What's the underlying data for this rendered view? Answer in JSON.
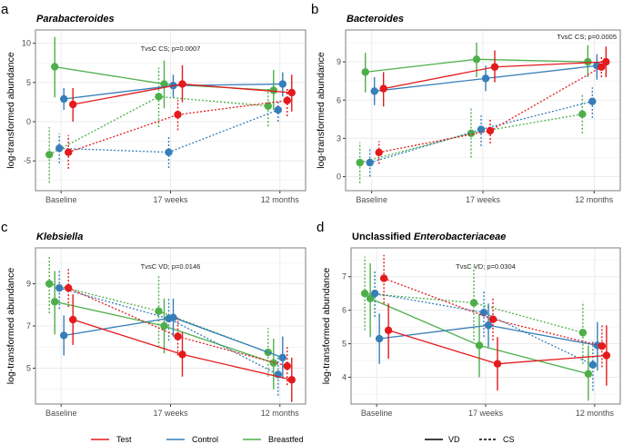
{
  "colors": {
    "Test": "#e41a1c",
    "Control": "#377eb8",
    "Breastfed": "#4daf4a"
  },
  "legend": {
    "groups": [
      "Test",
      "Control",
      "Breastfed"
    ],
    "delivery": [
      {
        "label": "VD",
        "linetype": "solid"
      },
      {
        "label": "CS",
        "linetype": "dashed"
      }
    ]
  },
  "chart_data": [
    {
      "type": "line",
      "panel_letter": "a",
      "title": "Parabacteroides",
      "title_italic": true,
      "ylabel": "log-transformed abundance",
      "categories": [
        "Baseline",
        "17 weeks",
        "12 months"
      ],
      "yticks": [
        -5,
        0,
        5,
        10
      ],
      "ylim": [
        -8.8,
        11.7
      ],
      "grid": true,
      "annotation": {
        "text": "TvsC CS; p=0.0007",
        "placement": "top-center"
      },
      "series": [
        {
          "group": "Breastfed",
          "delivery": "CS",
          "values": [
            -4.2,
            3.2,
            2.0
          ],
          "lower": [
            -7.8,
            -0.7,
            -0.6
          ],
          "upper": [
            -0.7,
            6.9,
            4.2
          ]
        },
        {
          "group": "Breastfed",
          "delivery": "VD",
          "values": [
            7.0,
            4.8,
            4.0
          ],
          "lower": [
            3.1,
            1.7,
            1.5
          ],
          "upper": [
            10.8,
            7.8,
            6.6
          ]
        },
        {
          "group": "Control",
          "delivery": "CS",
          "values": [
            -3.4,
            -3.9,
            1.5
          ],
          "lower": [
            -5.3,
            -5.9,
            0.0
          ],
          "upper": [
            -1.5,
            -1.9,
            2.8
          ]
        },
        {
          "group": "Control",
          "delivery": "VD",
          "values": [
            2.9,
            4.6,
            4.8
          ],
          "lower": [
            1.5,
            3.1,
            3.2
          ],
          "upper": [
            4.3,
            6.0,
            6.3
          ]
        },
        {
          "group": "Test",
          "delivery": "CS",
          "values": [
            -3.9,
            0.9,
            2.7
          ],
          "lower": [
            -6.0,
            -1.1,
            0.7
          ],
          "upper": [
            -1.7,
            2.8,
            4.4
          ]
        },
        {
          "group": "Test",
          "delivery": "VD",
          "values": [
            2.2,
            4.8,
            3.7
          ],
          "lower": [
            0.0,
            2.5,
            1.3
          ],
          "upper": [
            4.3,
            7.2,
            6.0
          ]
        }
      ]
    },
    {
      "type": "line",
      "panel_letter": "b",
      "title": "Bacteroides",
      "title_italic": true,
      "ylabel": "log-transformed abundance",
      "categories": [
        "Baseline",
        "17 weeks",
        "12 months"
      ],
      "yticks": [
        0,
        3,
        6,
        9
      ],
      "ylim": [
        -1.1,
        11.5
      ],
      "grid": true,
      "annotation": {
        "text": "TvsC CS; p=0.0005",
        "placement": "top-right"
      },
      "series": [
        {
          "group": "Breastfed",
          "delivery": "CS",
          "values": [
            1.1,
            3.4,
            4.9
          ],
          "lower": [
            -0.5,
            1.5,
            3.4
          ],
          "upper": [
            2.7,
            5.4,
            6.4
          ]
        },
        {
          "group": "Breastfed",
          "delivery": "VD",
          "values": [
            8.2,
            9.2,
            9.0
          ],
          "lower": [
            6.6,
            7.8,
            7.8
          ],
          "upper": [
            9.7,
            10.5,
            10.3
          ]
        },
        {
          "group": "Control",
          "delivery": "CS",
          "values": [
            1.1,
            3.7,
            5.9
          ],
          "lower": [
            0.0,
            2.4,
            4.6
          ],
          "upper": [
            2.3,
            4.8,
            7.0
          ]
        },
        {
          "group": "Control",
          "delivery": "VD",
          "values": [
            6.7,
            7.7,
            8.7
          ],
          "lower": [
            5.6,
            6.7,
            7.6
          ],
          "upper": [
            7.8,
            8.7,
            9.6
          ]
        },
        {
          "group": "Test",
          "delivery": "CS",
          "values": [
            1.9,
            3.6,
            8.6
          ],
          "lower": [
            1.0,
            2.6,
            7.8
          ],
          "upper": [
            2.8,
            4.6,
            9.4
          ]
        },
        {
          "group": "Test",
          "delivery": "VD",
          "values": [
            6.9,
            8.6,
            9.0
          ],
          "lower": [
            5.5,
            7.4,
            7.8
          ],
          "upper": [
            8.2,
            9.9,
            10.2
          ]
        }
      ]
    },
    {
      "type": "line",
      "panel_letter": "c",
      "title": "Klebsiella",
      "title_italic": true,
      "ylabel": "log-transformed abundance",
      "categories": [
        "Baseline",
        "17 weeks",
        "12 months"
      ],
      "yticks": [
        5,
        7,
        9
      ],
      "ylim": [
        3.3,
        10.7
      ],
      "grid": true,
      "annotation": {
        "text": "TvsC VD; p=0.0146",
        "placement": "top-center"
      },
      "series": [
        {
          "group": "Breastfed",
          "delivery": "CS",
          "values": [
            9.0,
            7.7,
            5.75
          ],
          "lower": [
            7.6,
            6.0,
            4.6
          ],
          "upper": [
            10.3,
            9.4,
            6.9
          ]
        },
        {
          "group": "Breastfed",
          "delivery": "VD",
          "values": [
            8.15,
            7.0,
            5.25
          ],
          "lower": [
            6.6,
            5.7,
            4.0
          ],
          "upper": [
            9.6,
            8.3,
            6.4
          ]
        },
        {
          "group": "Control",
          "delivery": "CS",
          "values": [
            8.8,
            7.35,
            4.7
          ],
          "lower": [
            7.8,
            6.3,
            3.7
          ],
          "upper": [
            9.7,
            8.3,
            5.6
          ]
        },
        {
          "group": "Control",
          "delivery": "VD",
          "values": [
            6.55,
            7.4,
            5.5
          ],
          "lower": [
            5.6,
            6.5,
            4.5
          ],
          "upper": [
            7.5,
            8.3,
            6.5
          ]
        },
        {
          "group": "Test",
          "delivery": "CS",
          "values": [
            8.8,
            6.5,
            5.1
          ],
          "lower": [
            7.9,
            5.6,
            4.2
          ],
          "upper": [
            9.7,
            7.4,
            6.0
          ]
        },
        {
          "group": "Test",
          "delivery": "VD",
          "values": [
            7.3,
            5.65,
            4.45
          ],
          "lower": [
            6.1,
            4.6,
            3.4
          ],
          "upper": [
            8.5,
            6.7,
            5.5
          ]
        }
      ]
    },
    {
      "type": "line",
      "panel_letter": "d",
      "title_prefix": "Unclassified ",
      "title": "Enterobacteriaceae",
      "title_italic": true,
      "ylabel": "log-transformed abundance",
      "categories": [
        "Baseline",
        "17 weeks",
        "12 months"
      ],
      "yticks": [
        4,
        5,
        6,
        7
      ],
      "ylim": [
        3.2,
        7.86
      ],
      "grid": true,
      "annotation": {
        "text": "TvsC VD; p=0.0304",
        "placement": "top-center"
      },
      "series": [
        {
          "group": "Breastfed",
          "delivery": "CS",
          "values": [
            6.5,
            6.22,
            5.33
          ],
          "lower": [
            5.4,
            5.1,
            4.4
          ],
          "upper": [
            7.6,
            7.3,
            6.25
          ]
        },
        {
          "group": "Breastfed",
          "delivery": "VD",
          "values": [
            6.35,
            4.95,
            4.1
          ],
          "lower": [
            5.2,
            4.0,
            3.3
          ],
          "upper": [
            7.4,
            5.9,
            4.95
          ]
        },
        {
          "group": "Control",
          "delivery": "CS",
          "values": [
            6.5,
            5.93,
            4.37
          ],
          "lower": [
            5.8,
            5.2,
            3.6
          ],
          "upper": [
            7.2,
            6.6,
            5.1
          ]
        },
        {
          "group": "Control",
          "delivery": "VD",
          "values": [
            5.15,
            5.55,
            4.95
          ],
          "lower": [
            4.4,
            4.9,
            4.2
          ],
          "upper": [
            5.9,
            6.2,
            5.65
          ]
        },
        {
          "group": "Test",
          "delivery": "CS",
          "values": [
            6.95,
            5.73,
            4.93
          ],
          "lower": [
            6.2,
            5.1,
            4.3
          ],
          "upper": [
            7.65,
            6.35,
            5.55
          ]
        },
        {
          "group": "Test",
          "delivery": "VD",
          "values": [
            5.4,
            4.4,
            4.65
          ],
          "lower": [
            4.55,
            3.6,
            3.75
          ],
          "upper": [
            6.2,
            5.2,
            5.55
          ]
        }
      ]
    }
  ]
}
